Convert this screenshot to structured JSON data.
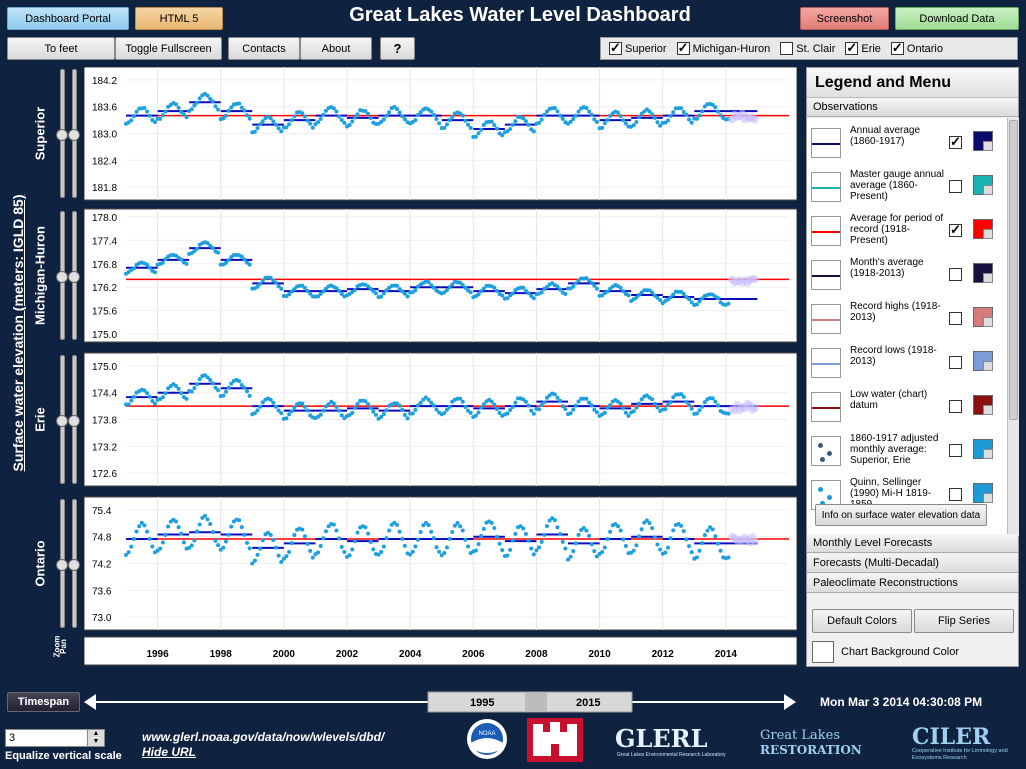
{
  "header": {
    "title": "Great Lakes Water Level Dashboard",
    "dashboard_portal": "Dashboard Portal",
    "html5": "HTML 5",
    "screenshot": "Screenshot",
    "download": "Download Data"
  },
  "toolbar": {
    "to_feet": "To feet",
    "fullscreen": "Toggle Fullscreen",
    "contacts": "Contacts",
    "about": "About",
    "help": "?"
  },
  "lakes": [
    {
      "name": "Superior",
      "checked": true
    },
    {
      "name": "Michigan-Huron",
      "checked": true
    },
    {
      "name": "St. Clair",
      "checked": false
    },
    {
      "name": "Erie",
      "checked": true
    },
    {
      "name": "Ontario",
      "checked": true
    }
  ],
  "y_axis_label": "Surface water elevation (meters: IGLD 85)",
  "zoom_label": "Zoom",
  "pan_label": "Pan",
  "chart_data": [
    {
      "type": "line",
      "title": "Superior",
      "ylim": [
        181.6,
        184.4
      ],
      "ticks": [
        "184.2",
        "183.6",
        "183.0",
        "182.4",
        "181.8"
      ],
      "tick_values": [
        184.2,
        183.6,
        183.0,
        182.4,
        181.8
      ],
      "record_avg": 183.4
    },
    {
      "type": "line",
      "title": "Michigan-Huron",
      "ylim": [
        174.9,
        178.1
      ],
      "ticks": [
        "178.0",
        "177.4",
        "176.8",
        "176.2",
        "175.6",
        "175.0"
      ],
      "tick_values": [
        178.0,
        177.4,
        176.8,
        176.2,
        175.6,
        175.0
      ],
      "record_avg": 176.4
    },
    {
      "type": "line",
      "title": "Erie",
      "ylim": [
        172.4,
        175.2
      ],
      "ticks": [
        "175.0",
        "174.4",
        "173.8",
        "173.2",
        "172.6"
      ],
      "tick_values": [
        175.0,
        174.4,
        173.8,
        173.2,
        172.6
      ],
      "record_avg": 174.1
    },
    {
      "type": "line",
      "title": "Ontario",
      "ylim": [
        72.8,
        75.6
      ],
      "ticks": [
        "75.4",
        "74.8",
        "74.2",
        "73.6",
        "73.0"
      ],
      "tick_values": [
        75.4,
        74.8,
        74.2,
        73.6,
        73.0
      ],
      "record_avg": 74.75
    }
  ],
  "x_axis": {
    "ticks": [
      "1996",
      "1998",
      "2000",
      "2002",
      "2004",
      "2006",
      "2008",
      "2010",
      "2012",
      "2014"
    ],
    "tick_years": [
      1996,
      1998,
      2000,
      2002,
      2004,
      2006,
      2008,
      2010,
      2012,
      2014
    ],
    "range": [
      1995,
      2016
    ]
  },
  "legend": {
    "title": "Legend and Menu",
    "sections": [
      "Observations",
      "Monthly Level Forecasts",
      "Forecasts (Multi-Decadal)",
      "Paleoclimate Reconstructions"
    ],
    "items": [
      {
        "label": "Annual average (1860-1917)",
        "checked": true,
        "color": "#0b0b6e"
      },
      {
        "label": "Master gauge annual average (1860-Present)",
        "checked": false,
        "color": "#19b3b3"
      },
      {
        "label": "Average for period of record (1918-Present)",
        "checked": true,
        "color": "#ff0000"
      },
      {
        "label": "Month's average (1918-2013)",
        "checked": false,
        "color": "#1a1040"
      },
      {
        "label": "Record highs (1918-2013)",
        "checked": false,
        "color": "#d77c7c"
      },
      {
        "label": "Record lows (1918-2013)",
        "checked": false,
        "color": "#7c9bd7"
      },
      {
        "label": "Low water (chart) datum",
        "checked": false,
        "color": "#8b1010"
      },
      {
        "label": "1860-1917 adjusted monthly average: Superior, Erie",
        "checked": false,
        "color": "#1e9bd7"
      },
      {
        "label": "Quinn, Sellinger (1990) Mi-H 1819-1859",
        "checked": false,
        "color": "#1e9bd7"
      }
    ],
    "info_button": "Info on surface water elevation data",
    "default_colors": "Default Colors",
    "flip_series": "Flip Series",
    "chart_bg": "Chart Background Color"
  },
  "timespan": {
    "button": "Timespan",
    "start": "1995",
    "end": "2015"
  },
  "datetime": "Mon Mar 3 2014 04:30:08 PM",
  "equalize": {
    "value": "3",
    "label": "Equalize vertical scale"
  },
  "url": {
    "text": "www.glerl.noaa.gov/data/now/wlevels/dbd/",
    "hide": "Hide URL"
  },
  "logos": {
    "glerl": "GLERL",
    "glerl_sub": "Great Lakes Environmental Research Laboratory",
    "glr": "Great Lakes",
    "glr2": "RESTORATION",
    "ciler": "CILER",
    "ciler_sub": "Cooperative Institute for Limnology and Ecosystems Research",
    "noaa": "NOAA"
  }
}
